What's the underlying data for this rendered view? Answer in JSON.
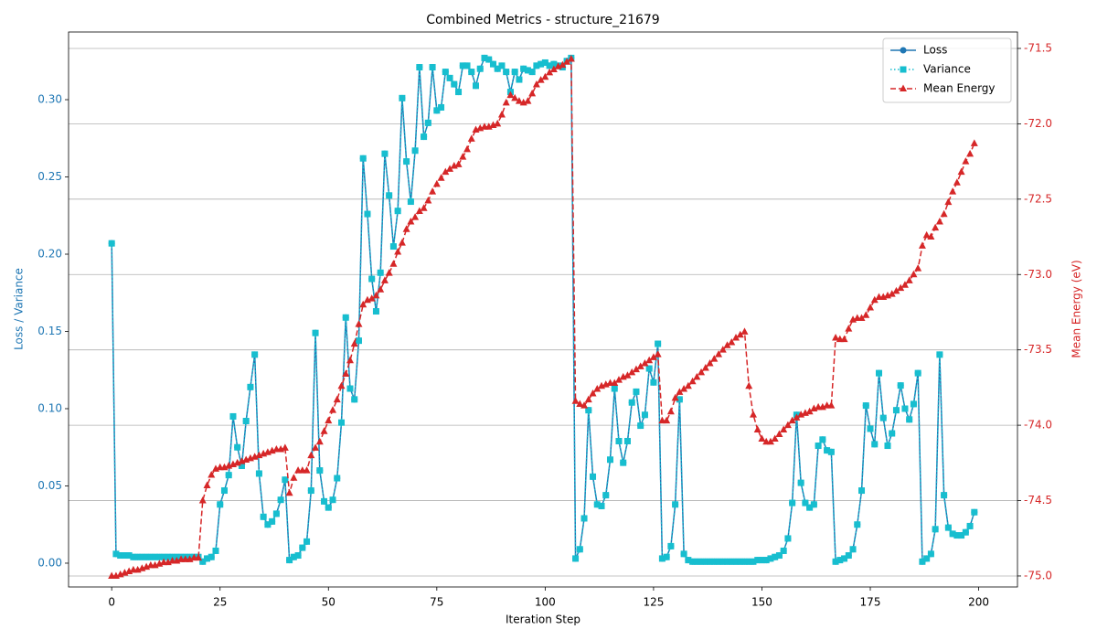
{
  "chart_data": {
    "type": "line",
    "title": "Combined Metrics - structure_21679",
    "xlabel": "Iteration Step",
    "ylabel": "Loss / Variance",
    "y2label": "Mean Energy (eV)",
    "ylabel_color": "#1f77b4",
    "y2label_color": "#d62728",
    "grid_axis": "y2",
    "legend": "upper right",
    "xlim": [
      -9.95,
      208.95
    ],
    "ylim": [
      -0.0154,
      0.3438
    ],
    "y2lim": [
      -75.073,
      -71.391
    ],
    "xticks": [
      0,
      25,
      50,
      75,
      100,
      125,
      150,
      175,
      200
    ],
    "yticks": [
      {
        "value": 0,
        "label": "0.00"
      },
      {
        "value": 0.05,
        "label": "0.05"
      },
      {
        "value": 0.1,
        "label": "0.10"
      },
      {
        "value": 0.15,
        "label": "0.15"
      },
      {
        "value": 0.2,
        "label": "0.20"
      },
      {
        "value": 0.25,
        "label": "0.25"
      },
      {
        "value": 0.3,
        "label": "0.30"
      }
    ],
    "y2ticks": [
      {
        "value": -75,
        "label": "-75.0"
      },
      {
        "value": -74.5,
        "label": "-74.5"
      },
      {
        "value": -74,
        "label": "-74.0"
      },
      {
        "value": -73.5,
        "label": "-73.5"
      },
      {
        "value": -73,
        "label": "-73.0"
      },
      {
        "value": -72.5,
        "label": "-72.5"
      },
      {
        "value": -72,
        "label": "-72.0"
      },
      {
        "value": -71.5,
        "label": "-71.5"
      }
    ],
    "x": [
      0,
      1,
      2,
      3,
      4,
      5,
      6,
      7,
      8,
      9,
      10,
      11,
      12,
      13,
      14,
      15,
      16,
      17,
      18,
      19,
      20,
      21,
      22,
      23,
      24,
      25,
      26,
      27,
      28,
      29,
      30,
      31,
      32,
      33,
      34,
      35,
      36,
      37,
      38,
      39,
      40,
      41,
      42,
      43,
      44,
      45,
      46,
      47,
      48,
      49,
      50,
      51,
      52,
      53,
      54,
      55,
      56,
      57,
      58,
      59,
      60,
      61,
      62,
      63,
      64,
      65,
      66,
      67,
      68,
      69,
      70,
      71,
      72,
      73,
      74,
      75,
      76,
      77,
      78,
      79,
      80,
      81,
      82,
      83,
      84,
      85,
      86,
      87,
      88,
      89,
      90,
      91,
      92,
      93,
      94,
      95,
      96,
      97,
      98,
      99,
      100,
      101,
      102,
      103,
      104,
      105,
      106,
      107,
      108,
      109,
      110,
      111,
      112,
      113,
      114,
      115,
      116,
      117,
      118,
      119,
      120,
      121,
      122,
      123,
      124,
      125,
      126,
      127,
      128,
      129,
      130,
      131,
      132,
      133,
      134,
      135,
      136,
      137,
      138,
      139,
      140,
      141,
      142,
      143,
      144,
      145,
      146,
      147,
      148,
      149,
      150,
      151,
      152,
      153,
      154,
      155,
      156,
      157,
      158,
      159,
      160,
      161,
      162,
      163,
      164,
      165,
      166,
      167,
      168,
      169,
      170,
      171,
      172,
      173,
      174,
      175,
      176,
      177,
      178,
      179,
      180,
      181,
      182,
      183,
      184,
      185,
      186,
      187,
      188,
      189,
      190,
      191,
      192,
      193,
      194,
      195,
      196,
      197,
      198,
      199
    ],
    "series": [
      {
        "name": "Loss",
        "color": "#1f77b4",
        "marker": "circle",
        "linestyle": "solid",
        "axis": "y",
        "values": [
          0.207,
          0.006,
          0.005,
          0.005,
          0.005,
          0.004,
          0.004,
          0.004,
          0.004,
          0.004,
          0.004,
          0.004,
          0.004,
          0.004,
          0.004,
          0.004,
          0.004,
          0.004,
          0.004,
          0.004,
          0.004,
          0.001,
          0.003,
          0.004,
          0.008,
          0.038,
          0.047,
          0.057,
          0.095,
          0.075,
          0.063,
          0.092,
          0.114,
          0.135,
          0.058,
          0.03,
          0.025,
          0.027,
          0.032,
          0.041,
          0.054,
          0.002,
          0.004,
          0.005,
          0.01,
          0.014,
          0.047,
          0.149,
          0.06,
          0.04,
          0.036,
          0.041,
          0.055,
          0.091,
          0.159,
          0.113,
          0.106,
          0.144,
          0.262,
          0.226,
          0.184,
          0.163,
          0.188,
          0.265,
          0.238,
          0.205,
          0.228,
          0.301,
          0.26,
          0.234,
          0.267,
          0.321,
          0.276,
          0.285,
          0.321,
          0.293,
          0.295,
          0.318,
          0.314,
          0.31,
          0.305,
          0.322,
          0.322,
          0.318,
          0.309,
          0.32,
          0.327,
          0.326,
          0.323,
          0.32,
          0.322,
          0.318,
          0.305,
          0.318,
          0.313,
          0.32,
          0.319,
          0.318,
          0.322,
          0.323,
          0.324,
          0.322,
          0.323,
          0.322,
          0.321,
          0.325,
          0.327,
          0.003,
          0.009,
          0.029,
          0.099,
          0.056,
          0.038,
          0.037,
          0.044,
          0.067,
          0.113,
          0.079,
          0.065,
          0.079,
          0.104,
          0.111,
          0.089,
          0.096,
          0.126,
          0.117,
          0.142,
          0.003,
          0.004,
          0.011,
          0.038,
          0.106,
          0.006,
          0.002,
          0.001,
          0.001,
          0.001,
          0.001,
          0.001,
          0.001,
          0.001,
          0.001,
          0.001,
          0.001,
          0.001,
          0.001,
          0.001,
          0.001,
          0.001,
          0.002,
          0.002,
          0.002,
          0.003,
          0.004,
          0.005,
          0.008,
          0.016,
          0.039,
          0.096,
          0.052,
          0.039,
          0.036,
          0.038,
          0.076,
          0.08,
          0.073,
          0.072,
          0.001,
          0.002,
          0.003,
          0.005,
          0.009,
          0.025,
          0.047,
          0.102,
          0.087,
          0.077,
          0.123,
          0.094,
          0.076,
          0.084,
          0.099,
          0.115,
          0.1,
          0.093,
          0.103,
          0.123,
          0.001,
          0.003,
          0.006,
          0.022,
          0.135,
          0.044,
          0.023,
          0.019,
          0.018,
          0.018,
          0.02,
          0.024,
          0.033
        ]
      },
      {
        "name": "Variance",
        "color": "#17becf",
        "marker": "square",
        "linestyle": "dotted",
        "axis": "y",
        "values": [
          0.207,
          0.006,
          0.005,
          0.005,
          0.005,
          0.004,
          0.004,
          0.004,
          0.004,
          0.004,
          0.004,
          0.004,
          0.004,
          0.004,
          0.004,
          0.004,
          0.004,
          0.004,
          0.004,
          0.004,
          0.004,
          0.001,
          0.003,
          0.004,
          0.008,
          0.038,
          0.047,
          0.057,
          0.095,
          0.075,
          0.063,
          0.092,
          0.114,
          0.135,
          0.058,
          0.03,
          0.025,
          0.027,
          0.032,
          0.041,
          0.054,
          0.002,
          0.004,
          0.005,
          0.01,
          0.014,
          0.047,
          0.149,
          0.06,
          0.04,
          0.036,
          0.041,
          0.055,
          0.091,
          0.159,
          0.113,
          0.106,
          0.144,
          0.262,
          0.226,
          0.184,
          0.163,
          0.188,
          0.265,
          0.238,
          0.205,
          0.228,
          0.301,
          0.26,
          0.234,
          0.267,
          0.321,
          0.276,
          0.285,
          0.321,
          0.293,
          0.295,
          0.318,
          0.314,
          0.31,
          0.305,
          0.322,
          0.322,
          0.318,
          0.309,
          0.32,
          0.327,
          0.326,
          0.323,
          0.32,
          0.322,
          0.318,
          0.305,
          0.318,
          0.313,
          0.32,
          0.319,
          0.318,
          0.322,
          0.323,
          0.324,
          0.322,
          0.323,
          0.322,
          0.321,
          0.325,
          0.327,
          0.003,
          0.009,
          0.029,
          0.099,
          0.056,
          0.038,
          0.037,
          0.044,
          0.067,
          0.113,
          0.079,
          0.065,
          0.079,
          0.104,
          0.111,
          0.089,
          0.096,
          0.126,
          0.117,
          0.142,
          0.003,
          0.004,
          0.011,
          0.038,
          0.106,
          0.006,
          0.002,
          0.001,
          0.001,
          0.001,
          0.001,
          0.001,
          0.001,
          0.001,
          0.001,
          0.001,
          0.001,
          0.001,
          0.001,
          0.001,
          0.001,
          0.001,
          0.002,
          0.002,
          0.002,
          0.003,
          0.004,
          0.005,
          0.008,
          0.016,
          0.039,
          0.096,
          0.052,
          0.039,
          0.036,
          0.038,
          0.076,
          0.08,
          0.073,
          0.072,
          0.001,
          0.002,
          0.003,
          0.005,
          0.009,
          0.025,
          0.047,
          0.102,
          0.087,
          0.077,
          0.123,
          0.094,
          0.076,
          0.084,
          0.099,
          0.115,
          0.1,
          0.093,
          0.103,
          0.123,
          0.001,
          0.003,
          0.006,
          0.022,
          0.135,
          0.044,
          0.023,
          0.019,
          0.018,
          0.018,
          0.02,
          0.024,
          0.033
        ]
      },
      {
        "name": "Mean Energy",
        "color": "#d62728",
        "marker": "triangle",
        "linestyle": "dashed",
        "axis": "y2",
        "values": [
          -75.0,
          -75.0,
          -74.99,
          -74.98,
          -74.97,
          -74.96,
          -74.96,
          -74.95,
          -74.94,
          -74.93,
          -74.93,
          -74.92,
          -74.91,
          -74.91,
          -74.9,
          -74.9,
          -74.89,
          -74.89,
          -74.89,
          -74.88,
          -74.88,
          -74.5,
          -74.4,
          -74.33,
          -74.29,
          -74.28,
          -74.28,
          -74.27,
          -74.26,
          -74.25,
          -74.24,
          -74.23,
          -74.22,
          -74.21,
          -74.2,
          -74.19,
          -74.18,
          -74.17,
          -74.16,
          -74.16,
          -74.15,
          -74.45,
          -74.35,
          -74.3,
          -74.3,
          -74.3,
          -74.2,
          -74.15,
          -74.11,
          -74.04,
          -73.97,
          -73.9,
          -73.83,
          -73.74,
          -73.66,
          -73.57,
          -73.46,
          -73.33,
          -73.2,
          -73.17,
          -73.16,
          -73.14,
          -73.1,
          -73.04,
          -72.99,
          -72.93,
          -72.85,
          -72.79,
          -72.7,
          -72.65,
          -72.62,
          -72.58,
          -72.56,
          -72.51,
          -72.45,
          -72.4,
          -72.36,
          -72.32,
          -72.3,
          -72.28,
          -72.27,
          -72.22,
          -72.17,
          -72.1,
          -72.04,
          -72.03,
          -72.02,
          -72.02,
          -72.01,
          -72.0,
          -71.94,
          -71.86,
          -71.81,
          -71.83,
          -71.85,
          -71.86,
          -71.85,
          -71.8,
          -71.74,
          -71.71,
          -71.69,
          -71.66,
          -71.64,
          -71.62,
          -71.61,
          -71.59,
          -71.57,
          -73.84,
          -73.86,
          -73.87,
          -73.83,
          -73.79,
          -73.76,
          -73.74,
          -73.73,
          -73.72,
          -73.72,
          -73.7,
          -73.68,
          -73.67,
          -73.65,
          -73.63,
          -73.61,
          -73.59,
          -73.57,
          -73.55,
          -73.53,
          -73.97,
          -73.97,
          -73.91,
          -73.82,
          -73.78,
          -73.76,
          -73.74,
          -73.71,
          -73.68,
          -73.65,
          -73.62,
          -73.59,
          -73.56,
          -73.53,
          -73.5,
          -73.47,
          -73.45,
          -73.42,
          -73.4,
          -73.38,
          -73.74,
          -73.93,
          -74.03,
          -74.09,
          -74.11,
          -74.11,
          -74.09,
          -74.06,
          -74.03,
          -74.0,
          -73.97,
          -73.95,
          -73.93,
          -73.92,
          -73.91,
          -73.89,
          -73.88,
          -73.88,
          -73.87,
          -73.87,
          -73.42,
          -73.43,
          -73.43,
          -73.36,
          -73.3,
          -73.29,
          -73.29,
          -73.27,
          -73.22,
          -73.17,
          -73.15,
          -73.15,
          -73.14,
          -73.13,
          -73.11,
          -73.09,
          -73.07,
          -73.04,
          -73.0,
          -72.96,
          -72.81,
          -72.74,
          -72.75,
          -72.69,
          -72.65,
          -72.6,
          -72.52,
          -72.45,
          -72.39,
          -72.32,
          -72.25,
          -72.2,
          -72.13
        ]
      }
    ]
  }
}
